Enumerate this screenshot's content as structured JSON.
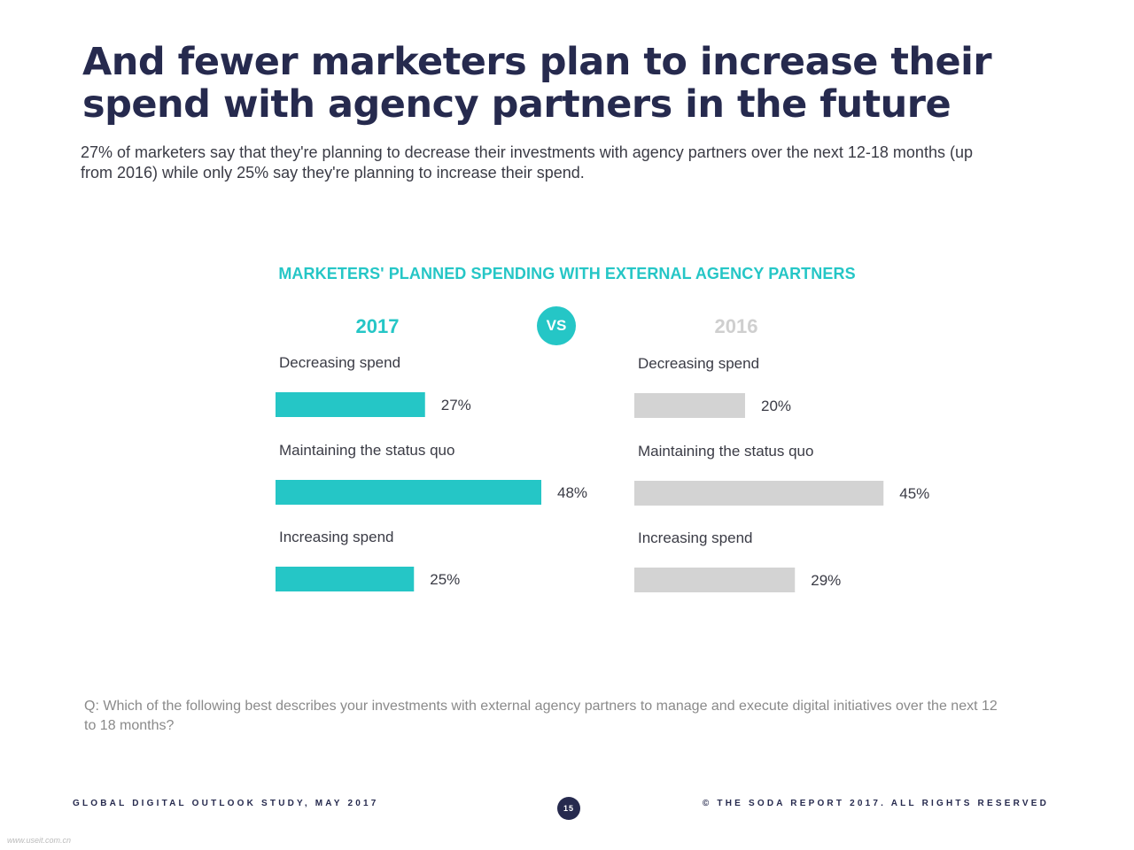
{
  "page": {
    "title": "And fewer marketers plan to increase their spend with agency partners in the future",
    "subtitle": "27% of marketers say that they're planning to decrease their investments with agency partners over the next 12-18 months (up from 2016) while only 25% say they're planning to increase their spend.",
    "question": "Q: Which of the following best describes your investments with external agency partners to manage and execute digital initiatives over the next 12 to 18 months?",
    "footer_left": "GLOBAL DIGITAL OUTLOOK STUDY, MAY 2017",
    "footer_right": "© THE SODA REPORT 2017. ALL RIGHTS RESERVED",
    "page_number": "15",
    "watermark": "www.useit.com.cn",
    "vs_label": "VS"
  },
  "colors": {
    "accent": "#25c6c6",
    "bar_2016": "#d3d3d3",
    "title": "#262a4e",
    "label_2016": "#cfcfcf"
  },
  "chart_data": {
    "type": "bar",
    "orientation": "horizontal",
    "title": "MARKETERS' PLANNED SPENDING WITH EXTERNAL AGENCY PARTNERS",
    "categories": [
      "Decreasing spend",
      "Maintaining the status quo",
      "Increasing spend"
    ],
    "series": [
      {
        "name": "2017",
        "values": [
          27,
          48,
          25
        ],
        "labels": [
          "27%",
          "48%",
          "25%"
        ],
        "color": "#25c6c6"
      },
      {
        "name": "2016",
        "values": [
          20,
          45,
          29
        ],
        "labels": [
          "20%",
          "45%",
          "29%"
        ],
        "color": "#d3d3d3"
      }
    ],
    "unit": "%",
    "xlim": [
      0,
      100
    ],
    "grid": false,
    "legend": "none"
  }
}
